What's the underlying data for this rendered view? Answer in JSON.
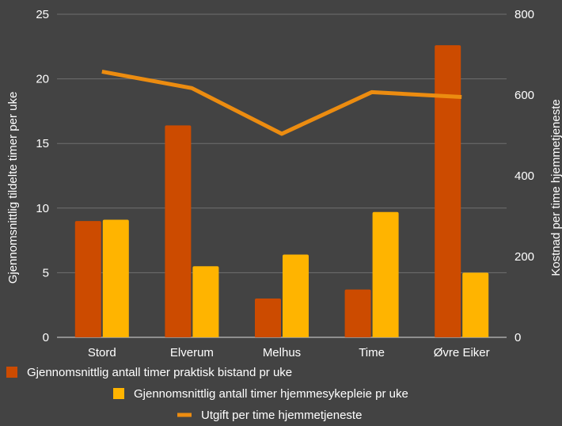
{
  "chart_data": {
    "type": "bar",
    "categories": [
      "Stord",
      "Elverum",
      "Melhus",
      "Time",
      "Øvre Eiker"
    ],
    "series": [
      {
        "name": "Gjennomsnittlig antall timer praktisk bistand pr uke",
        "type": "bar",
        "axis": "left",
        "color": "#cc4b00",
        "values": [
          9.0,
          16.4,
          3.0,
          3.7,
          22.6
        ]
      },
      {
        "name": "Gjennomsnittlig antall timer hjemmesykepleie pr uke",
        "type": "bar",
        "axis": "left",
        "color": "#ffb400",
        "values": [
          9.1,
          5.5,
          6.4,
          9.7,
          5.0
        ]
      },
      {
        "name": "Utgift per time hjemmetjeneste",
        "type": "line",
        "axis": "right",
        "color": "#ec8c10",
        "values": [
          658,
          617,
          504,
          607,
          595
        ]
      }
    ],
    "ylabel_left": "Gjennomsnittlig tildelte timer per uke",
    "ylabel_right": "Kostnad per time hjemmetjeneste",
    "ylim_left": [
      0,
      25
    ],
    "yticks_left": [
      "0",
      "5",
      "10",
      "15",
      "20",
      "25"
    ],
    "ylim_right": [
      0,
      800
    ],
    "yticks_right": [
      "0",
      "200",
      "400",
      "600",
      "800"
    ],
    "grid": true,
    "legend_position": "bottom",
    "background": "#434343"
  }
}
